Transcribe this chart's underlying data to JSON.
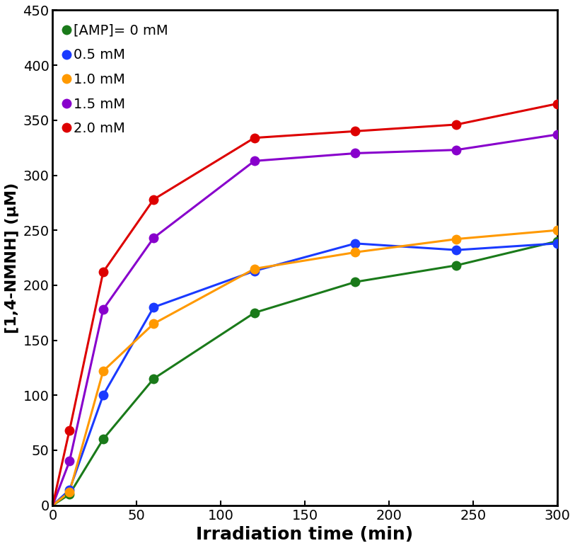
{
  "series": [
    {
      "label": "[AMP]= 0 mM",
      "color": "#1a7a1a",
      "x": [
        0,
        10,
        30,
        60,
        120,
        180,
        240,
        300
      ],
      "y": [
        0,
        10,
        60,
        115,
        175,
        203,
        218,
        240
      ]
    },
    {
      "label": "0.5 mM",
      "color": "#1a3aff",
      "x": [
        0,
        10,
        30,
        60,
        120,
        180,
        240,
        300
      ],
      "y": [
        0,
        14,
        100,
        180,
        213,
        238,
        232,
        238
      ]
    },
    {
      "label": "1.0 mM",
      "color": "#ff9900",
      "x": [
        0,
        10,
        30,
        60,
        120,
        180,
        240,
        300
      ],
      "y": [
        0,
        12,
        122,
        165,
        215,
        230,
        242,
        250
      ]
    },
    {
      "label": "1.5 mM",
      "color": "#8800cc",
      "x": [
        0,
        10,
        30,
        60,
        120,
        180,
        240,
        300
      ],
      "y": [
        0,
        40,
        178,
        243,
        313,
        320,
        323,
        337
      ]
    },
    {
      "label": "2.0 mM",
      "color": "#dd0000",
      "x": [
        0,
        10,
        30,
        60,
        120,
        180,
        240,
        300
      ],
      "y": [
        0,
        68,
        212,
        278,
        334,
        340,
        346,
        365
      ]
    }
  ],
  "xlabel": "Irradiation time (min)",
  "ylabel": "[1,4-NMNH] (μM)",
  "xlim": [
    0,
    300
  ],
  "ylim": [
    0,
    450
  ],
  "xticks": [
    0,
    50,
    100,
    150,
    200,
    250,
    300
  ],
  "yticks": [
    0,
    50,
    100,
    150,
    200,
    250,
    300,
    350,
    400,
    450
  ],
  "legend_loc": "upper left",
  "marker_size": 10,
  "line_width": 2.2,
  "xlabel_fontsize": 18,
  "ylabel_fontsize": 16,
  "tick_fontsize": 14,
  "legend_fontsize": 14
}
